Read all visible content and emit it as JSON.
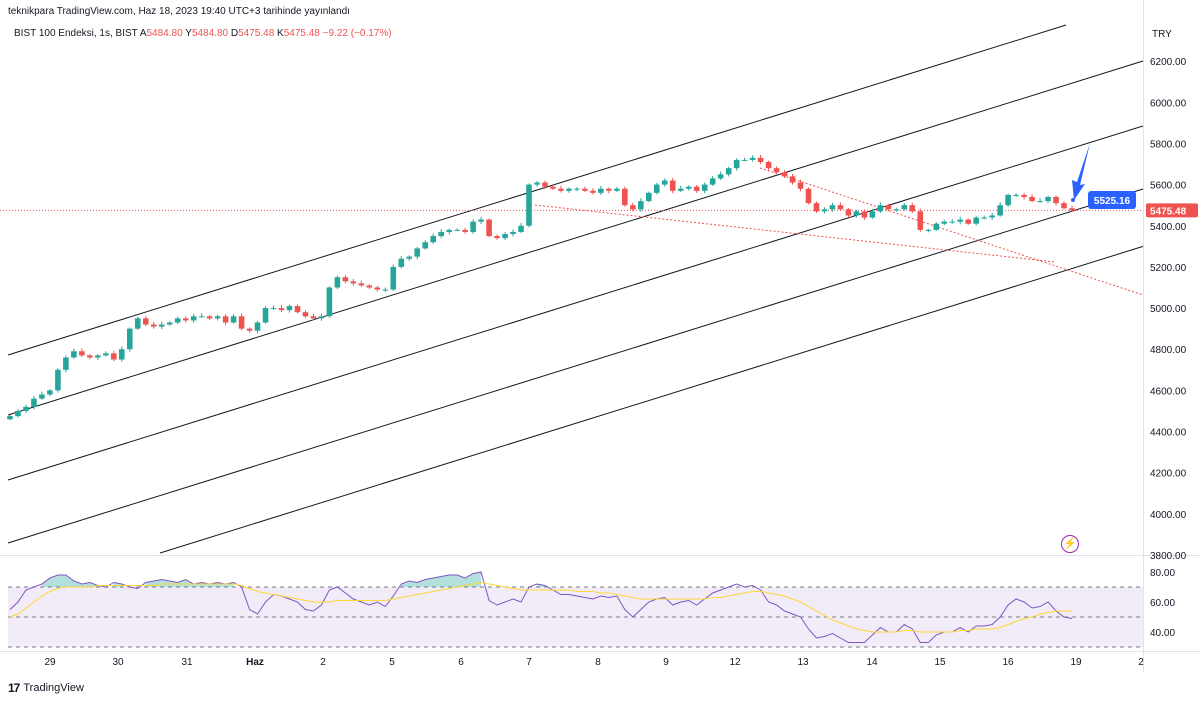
{
  "header": {
    "published": "teknikpara TradingView.com, Haz 18, 2023 19:40 UTC+3 tarihinde yayınlandı"
  },
  "legend": {
    "symbol": "BIST 100 Endeksi, 1s, BIST",
    "open_label": "A",
    "open": "5484.80",
    "high_label": "Y",
    "high": "5484.80",
    "low_label": "D",
    "low": "5475.48",
    "close_label": "K",
    "close": "5475.48",
    "change": "−9.22 (−0.17%)"
  },
  "footer": {
    "brand": "TradingView"
  },
  "colors": {
    "up": "#26a69a",
    "down": "#ef5350",
    "rsi": "#7e57c2",
    "rsi_ma": "#fdd835",
    "marker": "#2962ff"
  },
  "icons": [
    "lightning-icon",
    "tradingview-logo-icon"
  ],
  "chart_data": {
    "type": "candlestick",
    "currency": "TRY",
    "ylim": [
      3800,
      6400
    ],
    "y_ticks": [
      "6200.00",
      "6000.00",
      "5800.00",
      "5600.00",
      "5400.00",
      "5200.00",
      "5000.00",
      "4800.00",
      "4600.00",
      "4400.00",
      "4200.00",
      "4000.00",
      "3800.00"
    ],
    "x_ticks": [
      "29",
      "30",
      "31",
      "Haz",
      "2",
      "5",
      "6",
      "7",
      "8",
      "9",
      "12",
      "13",
      "14",
      "15",
      "16",
      "19",
      "2"
    ],
    "last_price_label": "5475.48",
    "target_label": "5525.16",
    "closes": [
      4475,
      4500,
      4520,
      4560,
      4580,
      4600,
      4700,
      4760,
      4790,
      4770,
      4760,
      4770,
      4780,
      4750,
      4800,
      4900,
      4950,
      4920,
      4910,
      4920,
      4930,
      4950,
      4940,
      4960,
      4960,
      4950,
      4960,
      4930,
      4960,
      4900,
      4890,
      4930,
      5000,
      5000,
      4990,
      5010,
      4980,
      4960,
      4950,
      4960,
      5100,
      5150,
      5130,
      5120,
      5110,
      5100,
      5090,
      5090,
      5200,
      5240,
      5250,
      5290,
      5320,
      5350,
      5370,
      5380,
      5380,
      5370,
      5420,
      5430,
      5350,
      5340,
      5360,
      5370,
      5400,
      5600,
      5610,
      5590,
      5580,
      5570,
      5580,
      5580,
      5570,
      5560,
      5580,
      5570,
      5580,
      5500,
      5480,
      5520,
      5560,
      5600,
      5620,
      5570,
      5580,
      5590,
      5570,
      5600,
      5630,
      5650,
      5680,
      5720,
      5720,
      5730,
      5710,
      5680,
      5660,
      5640,
      5610,
      5580,
      5510,
      5470,
      5480,
      5500,
      5480,
      5450,
      5470,
      5440,
      5470,
      5500,
      5480,
      5480,
      5500,
      5470,
      5380,
      5380,
      5410,
      5420,
      5420,
      5430,
      5410,
      5440,
      5440,
      5450,
      5500,
      5550,
      5550,
      5540,
      5520,
      5520,
      5540,
      5510,
      5485,
      5475
    ],
    "rsi": {
      "levels": [
        70,
        50,
        30
      ],
      "y_ticks": [
        "80.00",
        "60.00",
        "40.00"
      ],
      "ylim": [
        28,
        88
      ],
      "values": [
        55,
        60,
        68,
        70,
        72,
        76,
        78,
        78,
        74,
        72,
        73,
        71,
        70,
        73,
        72,
        70,
        69,
        73,
        74,
        75,
        74,
        73,
        75,
        72,
        73,
        72,
        73,
        72,
        73,
        70,
        55,
        52,
        60,
        65,
        64,
        62,
        60,
        55,
        54,
        58,
        68,
        70,
        66,
        62,
        60,
        58,
        60,
        57,
        64,
        72,
        74,
        73,
        75,
        76,
        77,
        78,
        78,
        76,
        79,
        80,
        61,
        58,
        60,
        62,
        60,
        70,
        72,
        71,
        68,
        65,
        65,
        64,
        63,
        62,
        64,
        63,
        64,
        55,
        50,
        55,
        60,
        62,
        63,
        58,
        60,
        61,
        58,
        62,
        66,
        68,
        70,
        72,
        70,
        71,
        68,
        60,
        58,
        54,
        52,
        50,
        42,
        36,
        37,
        39,
        36,
        33,
        33,
        33,
        38,
        43,
        40,
        40,
        45,
        42,
        33,
        33,
        38,
        40,
        40,
        43,
        40,
        44,
        44,
        45,
        50,
        58,
        62,
        60,
        56,
        57,
        60,
        54,
        50,
        49
      ],
      "ma": [
        50,
        52,
        56,
        60,
        64,
        67,
        69,
        70,
        70,
        70,
        70,
        71,
        71,
        71,
        71,
        71,
        71,
        71,
        71,
        72,
        72,
        72,
        72,
        72,
        72,
        72,
        72,
        72,
        72,
        71,
        69,
        67,
        66,
        65,
        64,
        63,
        62,
        61,
        60,
        60,
        60,
        61,
        61,
        61,
        61,
        61,
        61,
        61,
        62,
        63,
        64,
        65,
        66,
        67,
        68,
        69,
        70,
        71,
        72,
        73,
        72,
        71,
        70,
        69,
        68,
        68,
        68,
        68,
        68,
        68,
        68,
        67,
        67,
        67,
        66,
        66,
        65,
        64,
        63,
        62,
        62,
        62,
        62,
        62,
        62,
        62,
        62,
        62,
        63,
        63,
        64,
        65,
        66,
        67,
        67,
        66,
        65,
        64,
        62,
        60,
        57,
        54,
        51,
        48,
        46,
        44,
        42,
        41,
        40,
        40,
        40,
        40,
        41,
        41,
        40,
        40,
        40,
        40,
        40,
        41,
        41,
        42,
        42,
        42,
        43,
        45,
        47,
        49,
        50,
        52,
        53,
        54,
        54,
        54
      ]
    }
  }
}
